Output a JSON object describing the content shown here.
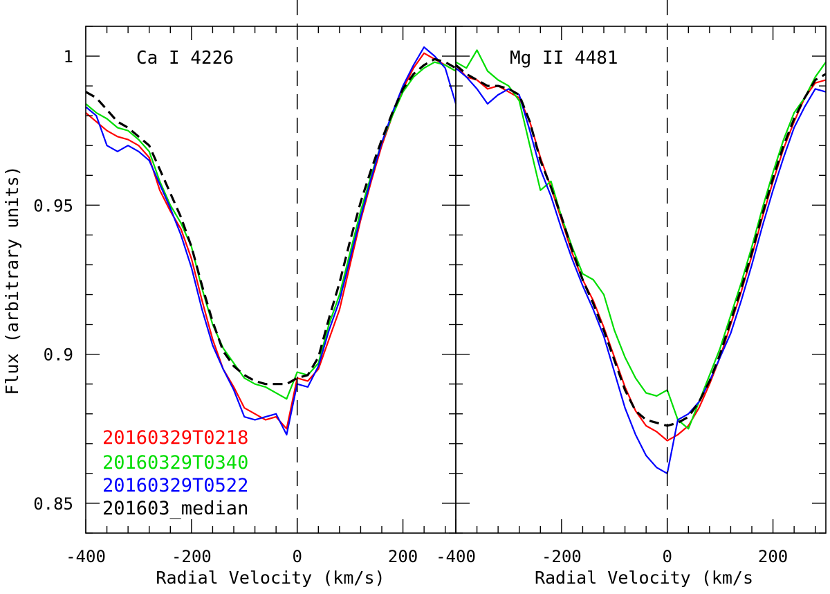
{
  "colors": {
    "red": "#ff0000",
    "green": "#00dd00",
    "blue": "#0000ff",
    "black": "#000000"
  },
  "chart_data": [
    {
      "type": "line",
      "title": "Ca I 4226",
      "xlabel": "Radial Velocity (km/s)",
      "ylabel": "Flux (arbitrary units)",
      "xlim": [
        -400,
        300
      ],
      "ylim": [
        0.84,
        1.01
      ],
      "x_ticks": [
        -400,
        -200,
        0,
        200
      ],
      "y_ticks": [
        0.85,
        0.9,
        0.95,
        1
      ],
      "y_tick_labels": [
        "0.85",
        "0.9",
        "0.95",
        "1"
      ],
      "vline": 0,
      "series": [
        {
          "name": "20160329T0218",
          "color": "#ff0000",
          "style": "solid",
          "x": [
            -400,
            -380,
            -360,
            -340,
            -320,
            -300,
            -280,
            -260,
            -240,
            -220,
            -200,
            -180,
            -160,
            -140,
            -120,
            -100,
            -80,
            -60,
            -40,
            -20,
            0,
            20,
            40,
            60,
            80,
            100,
            120,
            140,
            160,
            180,
            200,
            220,
            240,
            260,
            280,
            300
          ],
          "y": [
            0.981,
            0.978,
            0.975,
            0.973,
            0.972,
            0.97,
            0.966,
            0.955,
            0.948,
            0.942,
            0.932,
            0.918,
            0.905,
            0.895,
            0.889,
            0.882,
            0.88,
            0.878,
            0.879,
            0.875,
            0.892,
            0.891,
            0.895,
            0.905,
            0.915,
            0.93,
            0.945,
            0.958,
            0.97,
            0.98,
            0.989,
            0.996,
            1.001,
            0.999,
            0.997,
            0.995
          ]
        },
        {
          "name": "20160329T0340",
          "color": "#00dd00",
          "style": "solid",
          "x": [
            -400,
            -380,
            -360,
            -340,
            -320,
            -300,
            -280,
            -260,
            -240,
            -220,
            -200,
            -180,
            -160,
            -140,
            -120,
            -100,
            -80,
            -60,
            -40,
            -20,
            0,
            20,
            40,
            60,
            80,
            100,
            120,
            140,
            160,
            180,
            200,
            220,
            240,
            260,
            280,
            300
          ],
          "y": [
            0.984,
            0.981,
            0.979,
            0.976,
            0.975,
            0.972,
            0.968,
            0.958,
            0.95,
            0.944,
            0.936,
            0.922,
            0.91,
            0.902,
            0.897,
            0.892,
            0.89,
            0.889,
            0.887,
            0.885,
            0.894,
            0.893,
            0.897,
            0.91,
            0.92,
            0.934,
            0.948,
            0.96,
            0.971,
            0.98,
            0.988,
            0.993,
            0.996,
            0.998,
            0.997,
            0.995
          ]
        },
        {
          "name": "20160329T0522",
          "color": "#0000ff",
          "style": "solid",
          "x": [
            -400,
            -380,
            -360,
            -340,
            -320,
            -300,
            -280,
            -260,
            -240,
            -220,
            -200,
            -180,
            -160,
            -140,
            -120,
            -100,
            -80,
            -60,
            -40,
            -20,
            0,
            20,
            40,
            60,
            80,
            100,
            120,
            140,
            160,
            180,
            200,
            220,
            240,
            260,
            280,
            300
          ],
          "y": [
            0.983,
            0.98,
            0.97,
            0.968,
            0.97,
            0.968,
            0.965,
            0.957,
            0.949,
            0.94,
            0.929,
            0.915,
            0.903,
            0.895,
            0.888,
            0.879,
            0.878,
            0.879,
            0.88,
            0.873,
            0.89,
            0.889,
            0.896,
            0.908,
            0.918,
            0.932,
            0.946,
            0.959,
            0.971,
            0.981,
            0.99,
            0.997,
            1.003,
            1.0,
            0.996,
            0.984
          ]
        },
        {
          "name": "201603_median",
          "color": "#000000",
          "style": "dashed",
          "x": [
            -400,
            -380,
            -360,
            -340,
            -320,
            -300,
            -280,
            -260,
            -240,
            -220,
            -200,
            -180,
            -160,
            -140,
            -120,
            -100,
            -80,
            -60,
            -40,
            -20,
            0,
            20,
            40,
            60,
            80,
            100,
            120,
            140,
            160,
            180,
            200,
            220,
            240,
            260,
            280,
            300
          ],
          "y": [
            0.988,
            0.986,
            0.982,
            0.978,
            0.976,
            0.973,
            0.97,
            0.962,
            0.954,
            0.946,
            0.936,
            0.923,
            0.911,
            0.901,
            0.896,
            0.893,
            0.891,
            0.89,
            0.89,
            0.89,
            0.892,
            0.893,
            0.899,
            0.912,
            0.924,
            0.938,
            0.951,
            0.962,
            0.972,
            0.981,
            0.989,
            0.994,
            0.997,
            0.999,
            0.998,
            0.996
          ]
        }
      ],
      "legend": [
        "20160329T0218",
        "20160329T0340",
        "20160329T0522",
        "201603_median"
      ],
      "legend_position": "bottom-left"
    },
    {
      "type": "line",
      "title": "Mg II 4481",
      "xlabel": "Radial Velocity (km/s",
      "ylabel": "",
      "xlim": [
        -400,
        300
      ],
      "ylim": [
        0.84,
        1.01
      ],
      "x_ticks": [
        -400,
        -200,
        0,
        200
      ],
      "vline": 0,
      "series": [
        {
          "name": "20160329T0218",
          "color": "#ff0000",
          "style": "solid",
          "x": [
            -400,
            -380,
            -360,
            -340,
            -320,
            -300,
            -280,
            -260,
            -240,
            -220,
            -200,
            -180,
            -160,
            -140,
            -120,
            -100,
            -80,
            -60,
            -40,
            -20,
            0,
            20,
            40,
            60,
            80,
            100,
            120,
            140,
            160,
            180,
            200,
            220,
            240,
            260,
            280,
            300
          ],
          "y": [
            0.997,
            0.993,
            0.992,
            0.989,
            0.99,
            0.988,
            0.986,
            0.978,
            0.966,
            0.956,
            0.945,
            0.934,
            0.925,
            0.918,
            0.909,
            0.899,
            0.889,
            0.881,
            0.876,
            0.874,
            0.871,
            0.873,
            0.876,
            0.882,
            0.89,
            0.899,
            0.91,
            0.921,
            0.933,
            0.946,
            0.958,
            0.969,
            0.978,
            0.986,
            0.991,
            0.992
          ]
        },
        {
          "name": "20160329T0340",
          "color": "#00dd00",
          "style": "solid",
          "x": [
            -400,
            -380,
            -360,
            -340,
            -320,
            -300,
            -280,
            -260,
            -240,
            -220,
            -200,
            -180,
            -160,
            -140,
            -120,
            -100,
            -80,
            -60,
            -40,
            -20,
            0,
            20,
            40,
            60,
            80,
            100,
            120,
            140,
            160,
            180,
            200,
            220,
            240,
            260,
            280,
            300
          ],
          "y": [
            0.998,
            0.996,
            1.002,
            0.995,
            0.992,
            0.99,
            0.985,
            0.97,
            0.955,
            0.958,
            0.946,
            0.936,
            0.927,
            0.925,
            0.92,
            0.908,
            0.899,
            0.892,
            0.887,
            0.886,
            0.888,
            0.878,
            0.875,
            0.884,
            0.893,
            0.902,
            0.913,
            0.924,
            0.936,
            0.949,
            0.961,
            0.972,
            0.981,
            0.986,
            0.993,
            0.998
          ]
        },
        {
          "name": "20160329T0522",
          "color": "#0000ff",
          "style": "solid",
          "x": [
            -400,
            -380,
            -360,
            -340,
            -320,
            -300,
            -280,
            -260,
            -240,
            -220,
            -200,
            -180,
            -160,
            -140,
            -120,
            -100,
            -80,
            -60,
            -40,
            -20,
            0,
            20,
            40,
            60,
            80,
            100,
            120,
            140,
            160,
            180,
            200,
            220,
            240,
            260,
            280,
            300
          ],
          "y": [
            0.996,
            0.993,
            0.989,
            0.984,
            0.987,
            0.989,
            0.987,
            0.975,
            0.962,
            0.953,
            0.942,
            0.932,
            0.923,
            0.915,
            0.906,
            0.894,
            0.882,
            0.873,
            0.866,
            0.862,
            0.86,
            0.878,
            0.88,
            0.884,
            0.891,
            0.899,
            0.907,
            0.918,
            0.93,
            0.943,
            0.955,
            0.966,
            0.976,
            0.983,
            0.989,
            0.988
          ]
        },
        {
          "name": "201603_median",
          "color": "#000000",
          "style": "dashed",
          "x": [
            -400,
            -380,
            -360,
            -340,
            -320,
            -300,
            -280,
            -260,
            -240,
            -220,
            -200,
            -180,
            -160,
            -140,
            -120,
            -100,
            -80,
            -60,
            -40,
            -20,
            0,
            20,
            40,
            60,
            80,
            100,
            120,
            140,
            160,
            180,
            200,
            220,
            240,
            260,
            280,
            300
          ],
          "y": [
            0.997,
            0.994,
            0.992,
            0.99,
            0.99,
            0.989,
            0.987,
            0.978,
            0.965,
            0.956,
            0.946,
            0.935,
            0.925,
            0.917,
            0.908,
            0.898,
            0.888,
            0.881,
            0.878,
            0.877,
            0.876,
            0.877,
            0.879,
            0.884,
            0.891,
            0.9,
            0.911,
            0.922,
            0.934,
            0.947,
            0.959,
            0.97,
            0.979,
            0.986,
            0.992,
            0.994
          ]
        }
      ]
    }
  ]
}
